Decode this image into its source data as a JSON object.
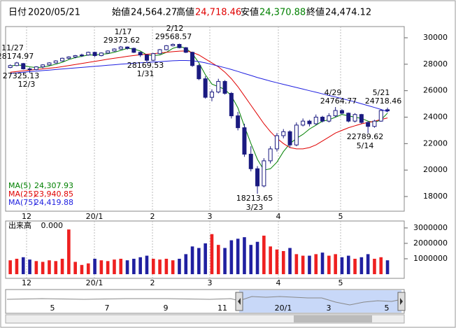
{
  "header": {
    "date_label": "日付",
    "date": "2020/05/21",
    "quotes": [
      {
        "label": "始値",
        "value": "24,564.27",
        "color": "#000000"
      },
      {
        "label": "高値",
        "value": "24,718.46",
        "color": "#e00000"
      },
      {
        "label": "安値",
        "value": "24,370.88",
        "color": "#008000"
      },
      {
        "label": "終値",
        "value": "24,474.12",
        "color": "#000000"
      }
    ]
  },
  "chart_data": {
    "type": "candlestick",
    "up_color": "#ffffff",
    "down_color": "#1a1a80",
    "edge_color": "#1a1a80",
    "ylim": [
      16890,
      30846
    ],
    "yticks": [
      18000,
      20000,
      22000,
      24000,
      26000,
      28000,
      30000
    ],
    "months": [
      "12",
      "20/1",
      "2",
      "3",
      "4",
      "5"
    ],
    "candles": [
      [
        27750,
        27980,
        27700,
        27900
      ],
      [
        27900,
        28174.97,
        27850,
        28100
      ],
      [
        28050,
        28100,
        27600,
        27650
      ],
      [
        27650,
        27750,
        27325.13,
        27600
      ],
      [
        27600,
        27850,
        27550,
        27800
      ],
      [
        27800,
        28000,
        27700,
        27950
      ],
      [
        27950,
        28150,
        27900,
        28100
      ],
      [
        28100,
        28300,
        28050,
        28250
      ],
      [
        28250,
        28500,
        28200,
        28450
      ],
      [
        28450,
        28600,
        28350,
        28550
      ],
      [
        28550,
        28700,
        28450,
        28650
      ],
      [
        28650,
        28800,
        28550,
        28700
      ],
      [
        28700,
        28950,
        28650,
        28900
      ],
      [
        28900,
        28950,
        28550,
        28650
      ],
      [
        28650,
        28900,
        28600,
        28850
      ],
      [
        28850,
        29050,
        28800,
        29000
      ],
      [
        29000,
        29200,
        28950,
        29150
      ],
      [
        29150,
        29373.62,
        29100,
        29300
      ],
      [
        29300,
        29350,
        29100,
        29200
      ],
      [
        29200,
        29250,
        28850,
        28900
      ],
      [
        28900,
        28950,
        28550,
        28700
      ],
      [
        28700,
        28750,
        28169.53,
        28300
      ],
      [
        28300,
        28850,
        28250,
        28800
      ],
      [
        28800,
        29150,
        28750,
        29100
      ],
      [
        29100,
        29450,
        29050,
        29400
      ],
      [
        29400,
        29568.57,
        29350,
        29500
      ],
      [
        29500,
        29550,
        29200,
        29250
      ],
      [
        29250,
        29300,
        28850,
        28900
      ],
      [
        28900,
        28950,
        27800,
        27900
      ],
      [
        27900,
        28000,
        26800,
        26900
      ],
      [
        26900,
        27100,
        25400,
        25500
      ],
      [
        25500,
        26100,
        25200,
        25900
      ],
      [
        25900,
        26900,
        25800,
        26700
      ],
      [
        26700,
        26800,
        25700,
        25800
      ],
      [
        25800,
        25900,
        23900,
        24100
      ],
      [
        24100,
        24400,
        23000,
        23200
      ],
      [
        23200,
        23500,
        21000,
        21200
      ],
      [
        21200,
        21800,
        19900,
        20100
      ],
      [
        20100,
        20300,
        18213.65,
        18800
      ],
      [
        18800,
        20900,
        18700,
        20700
      ],
      [
        20700,
        21800,
        20500,
        21600
      ],
      [
        21600,
        22800,
        21400,
        22600
      ],
      [
        22600,
        23100,
        22400,
        22900
      ],
      [
        22900,
        23000,
        21700,
        21900
      ],
      [
        21900,
        23600,
        21800,
        23400
      ],
      [
        23400,
        23900,
        23300,
        23700
      ],
      [
        23700,
        23800,
        23300,
        23500
      ],
      [
        23500,
        24200,
        23400,
        24000
      ],
      [
        24000,
        24100,
        23600,
        23700
      ],
      [
        23700,
        24300,
        23600,
        24100
      ],
      [
        24100,
        24764.77,
        24000,
        24500
      ],
      [
        24500,
        24600,
        24200,
        24300
      ],
      [
        24300,
        24350,
        23600,
        23700
      ],
      [
        23700,
        24300,
        23600,
        24200
      ],
      [
        24200,
        24250,
        23500,
        23600
      ],
      [
        23600,
        23700,
        22789.62,
        23300
      ],
      [
        23300,
        23800,
        23200,
        23700
      ],
      [
        23700,
        24600,
        23650,
        24500
      ],
      [
        24564.27,
        24718.46,
        24370.88,
        24474.12
      ]
    ],
    "series": [
      {
        "name": "MA(5)",
        "color": "#008000",
        "value_label": "24,307.93",
        "values": [
          27850,
          27950,
          27900,
          27800,
          27750,
          27780,
          27880,
          28000,
          28150,
          28350,
          28500,
          28600,
          28700,
          28700,
          28750,
          28800,
          28900,
          29050,
          29200,
          29150,
          29000,
          28700,
          28650,
          28700,
          28900,
          29200,
          29350,
          29200,
          28800,
          28100,
          27200,
          26500,
          26300,
          26100,
          25600,
          24700,
          23300,
          22000,
          20800,
          20000,
          20100,
          20600,
          21400,
          22000,
          22400,
          22700,
          23100,
          23400,
          23700,
          23800,
          24000,
          24200,
          24100,
          24000,
          23900,
          23700,
          23600,
          23800,
          24307.93
        ]
      },
      {
        "name": "MA(25)",
        "color": "#e00000",
        "value_label": "23,940.85",
        "values": [
          27400,
          27450,
          27500,
          27550,
          27600,
          27650,
          27700,
          27750,
          27820,
          27900,
          27980,
          28060,
          28140,
          28220,
          28300,
          28380,
          28450,
          28520,
          28600,
          28660,
          28720,
          28760,
          28800,
          28850,
          28900,
          28950,
          28990,
          29000,
          28900,
          28700,
          28400,
          28100,
          27800,
          27400,
          26900,
          26300,
          25600,
          24900,
          24200,
          23500,
          22900,
          22400,
          22000,
          21700,
          21600,
          21600,
          21700,
          21900,
          22200,
          22500,
          22800,
          23000,
          23200,
          23350,
          23500,
          23600,
          23700,
          23820,
          23940.85
        ]
      },
      {
        "name": "MA(75)",
        "color": "#2020e0",
        "value_label": "24,419.88",
        "values": [
          27300,
          27350,
          27400,
          27440,
          27480,
          27520,
          27560,
          27600,
          27640,
          27680,
          27720,
          27760,
          27800,
          27840,
          27880,
          27920,
          27960,
          28000,
          28040,
          28080,
          28110,
          28140,
          28170,
          28200,
          28230,
          28260,
          28280,
          28280,
          28260,
          28200,
          28100,
          27980,
          27860,
          27740,
          27600,
          27450,
          27300,
          27150,
          26990,
          26860,
          26720,
          26600,
          26480,
          26360,
          26240,
          26120,
          26000,
          25880,
          25760,
          25640,
          25520,
          25400,
          25280,
          25150,
          25010,
          24870,
          24730,
          24580,
          24419.88
        ]
      }
    ],
    "annotations": [
      {
        "date": "11/27",
        "value": 28174.97
      },
      {
        "date": "12/3",
        "value": 27325.13
      },
      {
        "date": "1/17",
        "value": 29373.62
      },
      {
        "date": "1/31",
        "value": 28169.53
      },
      {
        "date": "2/12",
        "value": 29568.57
      },
      {
        "date": "3/23",
        "value": 18213.65
      },
      {
        "date": "4/29",
        "value": 24764.77
      },
      {
        "date": "5/14",
        "value": 22789.62
      },
      {
        "date": "5/21",
        "value": 24718.46
      }
    ],
    "volume": {
      "name": "出来高",
      "value_label": "0.000",
      "up_color": "#ee2020",
      "down_color": "#2020a0",
      "ylim": [
        -270000,
        3450000
      ],
      "yticks": [
        1000000,
        2000000,
        3000000
      ],
      "values": [
        900000,
        1000000,
        1100000,
        950000,
        850000,
        800000,
        900000,
        850000,
        1000000,
        2900000,
        800000,
        600000,
        700000,
        1000000,
        900000,
        850000,
        950000,
        1000000,
        900000,
        1000000,
        1100000,
        1200000,
        1000000,
        950000,
        1000000,
        900000,
        1000000,
        1300000,
        1800000,
        1700000,
        2000000,
        2600000,
        1900000,
        1700000,
        2200000,
        2300000,
        2400000,
        1900000,
        2100000,
        2500000,
        1800000,
        1600000,
        1500000,
        1700000,
        1300000,
        1200000,
        1200000,
        1300000,
        1400000,
        1200000,
        1300000,
        1100000,
        1200000,
        1000000,
        1100000,
        1300000,
        1000000,
        1100000,
        900000
      ]
    },
    "navigator": {
      "labels": [
        "5",
        "7",
        "9",
        "11",
        "20/1",
        "3",
        "5"
      ]
    }
  }
}
